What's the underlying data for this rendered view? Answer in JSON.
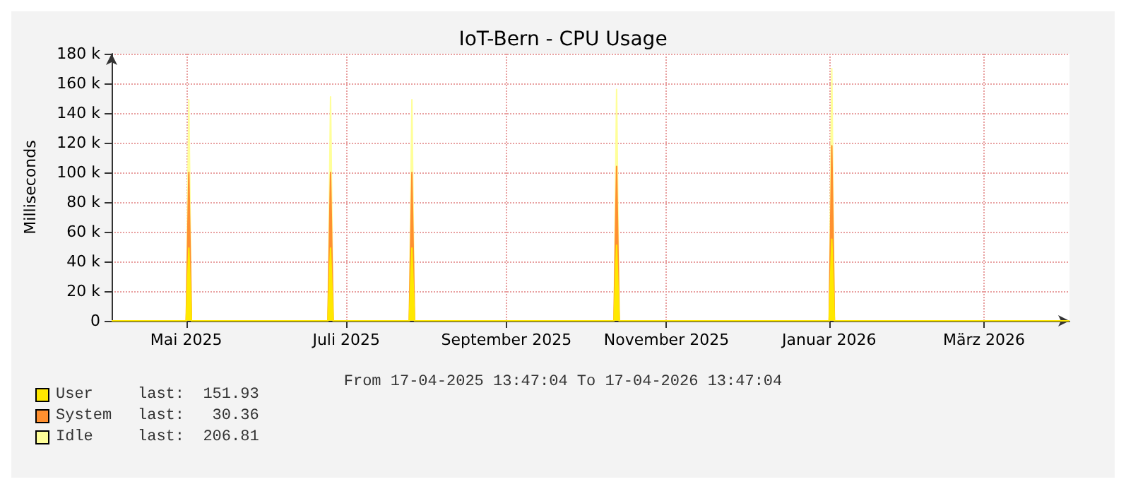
{
  "chart_data": {
    "type": "area",
    "title": "IoT-Bern - CPU Usage",
    "ylabel": "Milliseconds",
    "stacked": true,
    "x": [
      "2025-04-17T13:47",
      "2025-05-16",
      "2025-05-17",
      "2025-05-18",
      "2025-07-09",
      "2025-07-10",
      "2025-07-11",
      "2025-08-09",
      "2025-08-10",
      "2025-08-11",
      "2025-10-26",
      "2025-10-27",
      "2025-10-28",
      "2026-01-16",
      "2026-01-17",
      "2026-01-18",
      "2026-04-17T13:47"
    ],
    "series": [
      {
        "name": "User",
        "color": "#ffe800",
        "values": [
          0,
          0,
          49000,
          0,
          0,
          49000,
          0,
          0,
          49000,
          0,
          0,
          51000,
          0,
          0,
          55000,
          0,
          0
        ]
      },
      {
        "name": "System",
        "color": "#ff9030",
        "values": [
          0,
          0,
          51000,
          0,
          0,
          51000,
          0,
          0,
          51000,
          0,
          0,
          53000,
          0,
          0,
          63000,
          0,
          0
        ]
      },
      {
        "name": "Idle",
        "color": "#ffff99",
        "values": [
          0,
          0,
          49000,
          0,
          0,
          51000,
          0,
          0,
          49000,
          0,
          0,
          52000,
          0,
          0,
          52000,
          0,
          0
        ]
      }
    ],
    "xlim": [
      "2025-04-17T13:47",
      "2026-04-17T13:47"
    ],
    "xticks": [
      {
        "value": "2025-05-16",
        "label": "Mai 2025"
      },
      {
        "value": "2025-07-16",
        "label": "Juli 2025"
      },
      {
        "value": "2025-09-15",
        "label": "September 2025"
      },
      {
        "value": "2025-11-15",
        "label": "November 2025"
      },
      {
        "value": "2026-01-16",
        "label": "Januar 2026"
      },
      {
        "value": "2026-03-16",
        "label": "März 2026"
      }
    ],
    "ylim": [
      0,
      180000
    ],
    "yticks": [
      0,
      {
        "value": 20000,
        "label": "20 k"
      },
      {
        "value": 40000,
        "label": "40 k"
      },
      {
        "value": 60000,
        "label": "60 k"
      },
      {
        "value": 80000,
        "label": "80 k"
      },
      {
        "value": 100000,
        "label": "100 k"
      },
      {
        "value": 120000,
        "label": "120 k"
      },
      {
        "value": 140000,
        "label": "140 k"
      },
      {
        "value": 160000,
        "label": "160 k"
      },
      {
        "value": 180000,
        "label": "180 k"
      }
    ],
    "grid": true,
    "legend": "bottom left",
    "annotations": [
      "From 17-04-2025 13:47:04 To 17-04-2026 13:47:04",
      "last:  151.93",
      "last:   30.36",
      "last:  206.81"
    ]
  }
}
